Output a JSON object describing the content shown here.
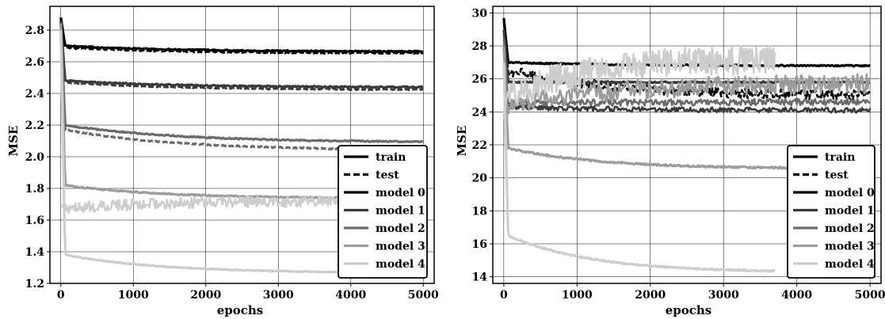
{
  "chart_data": [
    {
      "type": "line",
      "title": "",
      "xlabel": "epochs",
      "ylabel": "MSE",
      "xlim": [
        -150,
        5150
      ],
      "ylim": [
        1.2,
        2.95
      ],
      "xticks": [
        0,
        1000,
        2000,
        3000,
        4000,
        5000
      ],
      "xtick_labels": [
        "0",
        "1000",
        "2000",
        "3000",
        "4000",
        "5000"
      ],
      "yticks": [
        1.2,
        1.4,
        1.6,
        1.8,
        2.0,
        2.2,
        2.4,
        2.6,
        2.8
      ],
      "ytick_labels": [
        "1.2",
        "1.4",
        "1.6",
        "1.8",
        "2.0",
        "2.2",
        "2.4",
        "2.6",
        "2.8"
      ],
      "grid": true,
      "legend_position": "bottom-right",
      "legend": [
        {
          "label": "train",
          "style": "solid",
          "color": "#000000"
        },
        {
          "label": "test",
          "style": "dashed",
          "color": "#000000"
        },
        {
          "label": "model 0",
          "style": "solid",
          "color": "#000000"
        },
        {
          "label": "model 1",
          "style": "solid",
          "color": "#3a3a3a"
        },
        {
          "label": "model 2",
          "style": "solid",
          "color": "#6b6b6b"
        },
        {
          "label": "model 3",
          "style": "solid",
          "color": "#9c9c9c"
        },
        {
          "label": "model 4",
          "style": "solid",
          "color": "#cdcdcd"
        }
      ],
      "series": [
        {
          "name": "model 0",
          "split": "train",
          "color": "#000000",
          "dashed": false,
          "start": 2.88,
          "plateau": 2.7,
          "end": 2.665,
          "noise": 0.004,
          "x_end": 5000
        },
        {
          "name": "model 0",
          "split": "test",
          "color": "#000000",
          "dashed": true,
          "start": 2.88,
          "plateau": 2.69,
          "end": 2.655,
          "noise": 0.004,
          "x_end": 5000
        },
        {
          "name": "model 1",
          "split": "train",
          "color": "#3a3a3a",
          "dashed": false,
          "start": 2.86,
          "plateau": 2.48,
          "end": 2.44,
          "noise": 0.004,
          "x_end": 5000
        },
        {
          "name": "model 1",
          "split": "test",
          "color": "#3a3a3a",
          "dashed": true,
          "start": 2.86,
          "plateau": 2.47,
          "end": 2.425,
          "noise": 0.004,
          "x_end": 5000
        },
        {
          "name": "model 2",
          "split": "train",
          "color": "#6b6b6b",
          "dashed": false,
          "start": 2.85,
          "plateau": 2.2,
          "end": 2.095,
          "noise": 0.004,
          "x_end": 5000
        },
        {
          "name": "model 2",
          "split": "test",
          "color": "#6b6b6b",
          "dashed": true,
          "start": 2.85,
          "plateau": 2.17,
          "end": 2.045,
          "noise": 0.004,
          "x_end": 5000
        },
        {
          "name": "model 3",
          "split": "train",
          "color": "#9c9c9c",
          "dashed": false,
          "start": 2.84,
          "plateau": 1.82,
          "end": 1.74,
          "noise": 0.004,
          "x_end": 4300
        },
        {
          "name": "model 3",
          "split": "test",
          "color": "#cdcdcd",
          "dashed": false,
          "start": 1.7,
          "plateau": 1.67,
          "end": 1.72,
          "noise": 0.035,
          "x_end": 4300
        },
        {
          "name": "model 4",
          "split": "train",
          "color": "#cdcdcd",
          "dashed": false,
          "start": 2.8,
          "plateau": 1.38,
          "end": 1.27,
          "noise": 0.003,
          "x_end": 4300
        }
      ]
    },
    {
      "type": "line",
      "title": "",
      "xlabel": "epochs",
      "ylabel": "MSE",
      "xlim": [
        -150,
        5150
      ],
      "ylim": [
        13.6,
        30.4
      ],
      "xticks": [
        0,
        1000,
        2000,
        3000,
        4000,
        5000
      ],
      "xtick_labels": [
        "0",
        "1000",
        "2000",
        "3000",
        "4000",
        "5000"
      ],
      "yticks": [
        14,
        16,
        18,
        20,
        22,
        24,
        26,
        28,
        30
      ],
      "ytick_labels": [
        "14",
        "16",
        "18",
        "20",
        "22",
        "24",
        "26",
        "28",
        "30"
      ],
      "grid": true,
      "legend_position": "bottom-right",
      "legend": [
        {
          "label": "train",
          "style": "solid",
          "color": "#000000"
        },
        {
          "label": "test",
          "style": "dashed",
          "color": "#000000"
        },
        {
          "label": "model 0",
          "style": "solid",
          "color": "#000000"
        },
        {
          "label": "model 1",
          "style": "solid",
          "color": "#3a3a3a"
        },
        {
          "label": "model 2",
          "style": "solid",
          "color": "#6b6b6b"
        },
        {
          "label": "model 3",
          "style": "solid",
          "color": "#9c9c9c"
        },
        {
          "label": "model 4",
          "style": "solid",
          "color": "#cdcdcd"
        }
      ],
      "series": [
        {
          "name": "model 0",
          "split": "train",
          "color": "#000000",
          "dashed": false,
          "start": 29.7,
          "plateau": 27.0,
          "end": 26.8,
          "noise": 0.04,
          "x_end": 5000
        },
        {
          "name": "model 0",
          "split": "test",
          "color": "#000000",
          "dashed": true,
          "start": 29.5,
          "plateau": 26.5,
          "end": 25.0,
          "noise": 0.3,
          "x_end": 5000
        },
        {
          "name": "model 1",
          "split": "train",
          "color": "#3a3a3a",
          "dashed": false,
          "start": 29.0,
          "plateau": 25.8,
          "end": 25.8,
          "noise": 0.05,
          "x_end": 5000
        },
        {
          "name": "model 1",
          "split": "test",
          "color": "#3a3a3a",
          "dashed": false,
          "start": 27.0,
          "plateau": 24.3,
          "end": 24.1,
          "noise": 0.15,
          "x_end": 5000
        },
        {
          "name": "model 2",
          "split": "train",
          "color": "#6b6b6b",
          "dashed": false,
          "start": 28.5,
          "plateau": 24.5,
          "end": 24.6,
          "noise": 0.2,
          "x_end": 5000
        },
        {
          "name": "model 3",
          "split": "train",
          "color": "#9c9c9c",
          "dashed": false,
          "start": 28.0,
          "plateau": 21.8,
          "end": 20.6,
          "noise": 0.05,
          "x_end": 4000
        },
        {
          "name": "model 3",
          "split": "test",
          "color": "#9c9c9c",
          "dashed": false,
          "start": 23.5,
          "plateau": 24.5,
          "end": 25.7,
          "noise": 0.6,
          "x_end": 5000
        },
        {
          "name": "model 4",
          "split": "train",
          "color": "#cdcdcd",
          "dashed": false,
          "start": 27.0,
          "plateau": 16.5,
          "end": 14.35,
          "noise": 0.04,
          "x_end": 3700
        },
        {
          "name": "model 4",
          "split": "test",
          "color": "#cdcdcd",
          "dashed": false,
          "start": 24.0,
          "plateau": 25.0,
          "end": 27.2,
          "noise": 0.9,
          "x_end": 3700
        }
      ]
    }
  ]
}
